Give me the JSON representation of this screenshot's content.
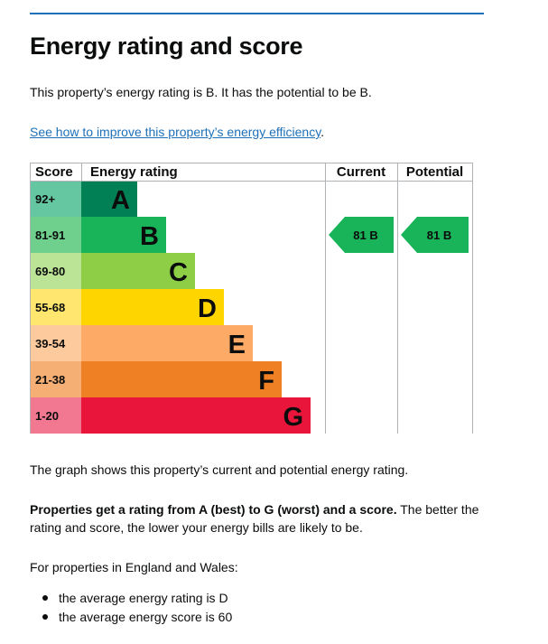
{
  "page": {
    "title": "Energy rating and score",
    "summary": "This property’s energy rating is B. It has the potential to be B.",
    "link_text": "See how to improve this property’s energy efficiency",
    "link_suffix": ".",
    "graph_caption": "The graph shows this property’s current and potential energy rating.",
    "rating_bold": "Properties get a rating from A (best) to G (worst) and a score.",
    "rating_rest": " The better the rating and score, the lower your energy bills are likely to be.",
    "region_intro": "For properties in England and Wales:",
    "bullets": [
      "the average energy rating is D",
      "the average energy score is 60"
    ]
  },
  "chart_data": {
    "type": "bar",
    "headers": {
      "score": "Score",
      "rating": "Energy rating",
      "current": "Current",
      "potential": "Potential"
    },
    "bands": [
      {
        "letter": "A",
        "range": "92+",
        "color": "#008054",
        "light": "#64c7a2"
      },
      {
        "letter": "B",
        "range": "81-91",
        "color": "#19b459",
        "light": "#6fd08e"
      },
      {
        "letter": "C",
        "range": "69-80",
        "color": "#8dce46",
        "light": "#bce497"
      },
      {
        "letter": "D",
        "range": "55-68",
        "color": "#ffd500",
        "light": "#ffe66e"
      },
      {
        "letter": "E",
        "range": "39-54",
        "color": "#fcaa65",
        "light": "#fdca9d"
      },
      {
        "letter": "F",
        "range": "21-38",
        "color": "#ef8023",
        "light": "#f5ae73"
      },
      {
        "letter": "G",
        "range": "1-20",
        "color": "#e9153b",
        "light": "#f27790"
      }
    ],
    "current": {
      "score": 81,
      "band": "B",
      "label": "81 B",
      "color": "#19b459"
    },
    "potential": {
      "score": 81,
      "band": "B",
      "label": "81 B",
      "color": "#19b459"
    }
  }
}
